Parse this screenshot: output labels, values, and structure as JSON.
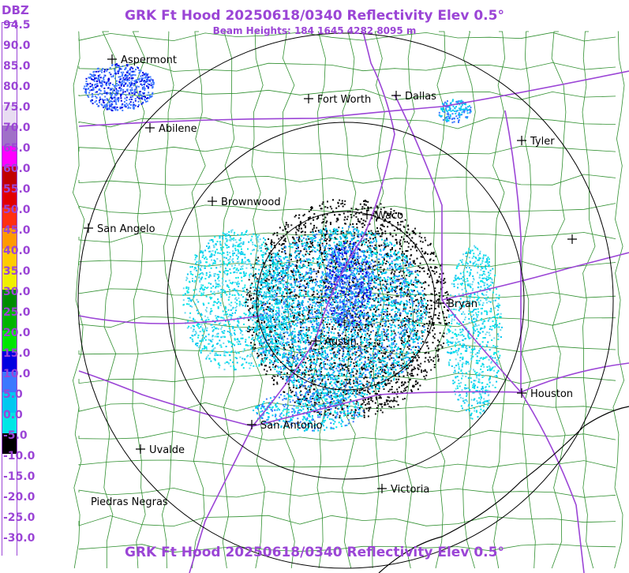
{
  "header": {
    "title": "GRK Ft Hood 20250618/0340 Reflectivity Elev 0.5°",
    "subtitle": "Beam Heights: 184 1645 4282 8095 m"
  },
  "footer": {
    "title": "GRK Ft Hood 20250618/0340 Reflectivity Elev 0.5°"
  },
  "colors": {
    "title": "#9b45d6",
    "county_lines": "#2f8f2f",
    "highways": "#9b45d6",
    "range_rings": "#000000"
  },
  "legend": {
    "unit": "DBZ",
    "entries": [
      {
        "label": "94.5",
        "color": "#ffffff"
      },
      {
        "label": "90.0",
        "color": "#ffffff"
      },
      {
        "label": "85.0",
        "color": "#ffffff"
      },
      {
        "label": "80.0",
        "color": "#ffffff"
      },
      {
        "label": "75.0",
        "color": "#e8dcf2"
      },
      {
        "label": "70.0",
        "color": "#a070c8"
      },
      {
        "label": "65.0",
        "color": "#ff00ff"
      },
      {
        "label": "60.0",
        "color": "#c00000"
      },
      {
        "label": "55.0",
        "color": "#e00000"
      },
      {
        "label": "50.0",
        "color": "#ff3010"
      },
      {
        "label": "45.0",
        "color": "#ff9a00"
      },
      {
        "label": "40.0",
        "color": "#ffcc00"
      },
      {
        "label": "35.0",
        "color": "#f0f000"
      },
      {
        "label": "30.0",
        "color": "#008c00"
      },
      {
        "label": "25.0",
        "color": "#00b400"
      },
      {
        "label": "20.0",
        "color": "#00e600"
      },
      {
        "label": "15.0",
        "color": "#0000e0"
      },
      {
        "label": "10.0",
        "color": "#3c78ff"
      },
      {
        "label": "5.0",
        "color": "#00c8f0"
      },
      {
        "label": "0.0",
        "color": "#00e6e6"
      },
      {
        "label": "-5.0",
        "color": "#000000"
      },
      {
        "label": "-10.0",
        "color": "#ffffff"
      },
      {
        "label": "-15.0",
        "color": "#ffffff"
      },
      {
        "label": "-20.0",
        "color": "#ffffff"
      },
      {
        "label": "-25.0",
        "color": "#ffffff"
      },
      {
        "label": "-30.0",
        "color": "#ffffff"
      }
    ]
  },
  "cities": [
    {
      "name": "Aspermont"
    },
    {
      "name": "Fort Worth"
    },
    {
      "name": "Dallas"
    },
    {
      "name": "Abilene"
    },
    {
      "name": "Tyler"
    },
    {
      "name": "Brownwood"
    },
    {
      "name": "Waco"
    },
    {
      "name": "San Angelo"
    },
    {
      "name": "Bryan"
    },
    {
      "name": "Austin"
    },
    {
      "name": "Houston"
    },
    {
      "name": "San Antonio"
    },
    {
      "name": "Uvalde"
    },
    {
      "name": "Victoria"
    },
    {
      "name": "Piedras Negras"
    }
  ]
}
